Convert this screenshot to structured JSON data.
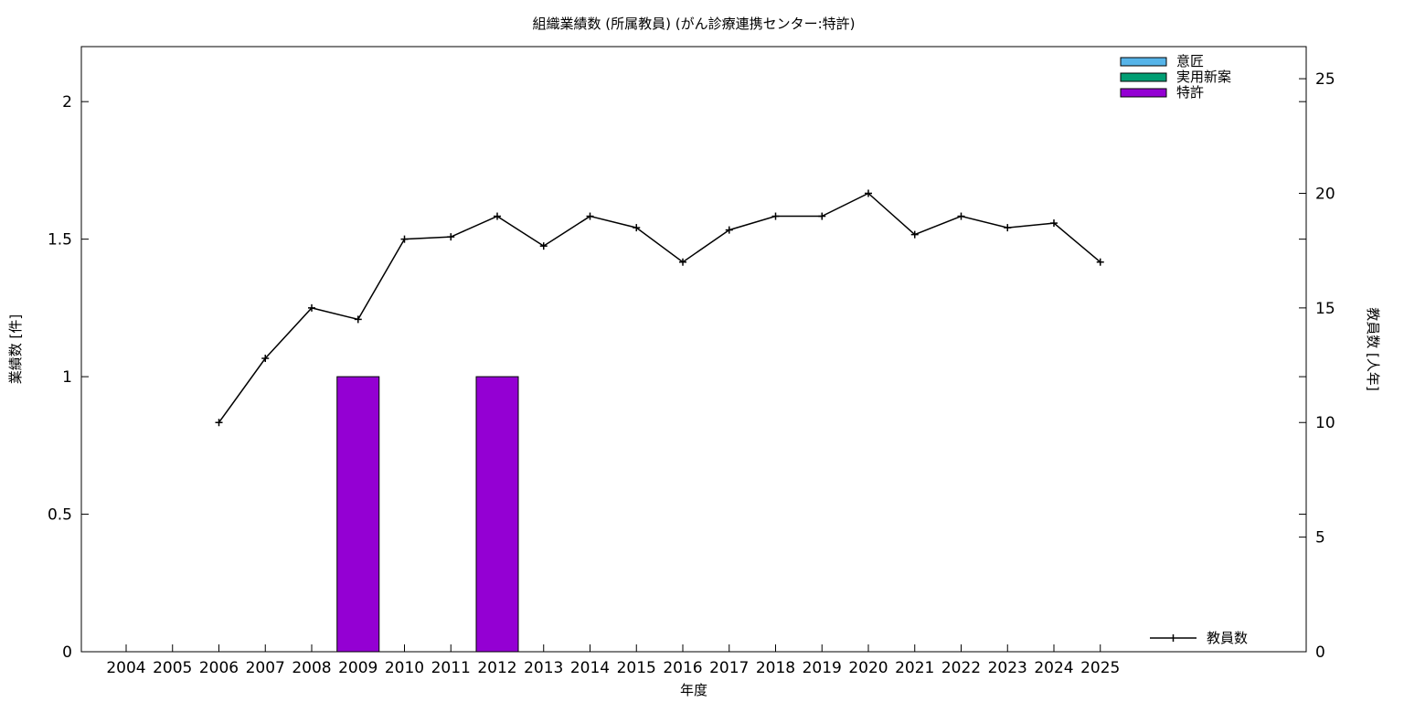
{
  "chart_data": {
    "type": "bar",
    "title": "組織業績数 (所属教員) (がん診療連携センター:特許)",
    "xlabel": "年度",
    "ylabel": "業績数 [件]",
    "y2label": "教員数 [人年]",
    "ylim": [
      0,
      2.2
    ],
    "y2lim": [
      0,
      26.4
    ],
    "yticks": [
      "0",
      "0.5",
      "1",
      "1.5",
      "2"
    ],
    "y2ticks": [
      "0",
      "5",
      "10",
      "15",
      "20",
      "25"
    ],
    "categories": [
      "2004",
      "2005",
      "2006",
      "2007",
      "2008",
      "2009",
      "2010",
      "2011",
      "2012",
      "2013",
      "2014",
      "2015",
      "2016",
      "2017",
      "2018",
      "2019",
      "2020",
      "2021",
      "2022",
      "2023",
      "2024",
      "2025"
    ],
    "bar_series": [
      {
        "name": "意匠",
        "color": "#56b4e9",
        "values": [
          0,
          0,
          0,
          0,
          0,
          0,
          0,
          0,
          0,
          0,
          0,
          0,
          0,
          0,
          0,
          0,
          0,
          0,
          0,
          0,
          0,
          0
        ]
      },
      {
        "name": "実用新案",
        "color": "#009e73",
        "values": [
          0,
          0,
          0,
          0,
          0,
          0,
          0,
          0,
          0,
          0,
          0,
          0,
          0,
          0,
          0,
          0,
          0,
          0,
          0,
          0,
          0,
          0
        ]
      },
      {
        "name": "特許",
        "color": "#9400d3",
        "values": [
          0,
          0,
          0,
          0,
          0,
          1,
          0,
          0,
          1,
          0,
          0,
          0,
          0,
          0,
          0,
          0,
          0,
          0,
          0,
          0,
          0,
          0
        ]
      }
    ],
    "line_series": {
      "name": "教員数",
      "color": "#000000",
      "axis": "y2",
      "values": [
        null,
        null,
        10,
        12.8,
        15,
        14.5,
        18,
        18.1,
        19,
        17.7,
        19,
        18.5,
        17,
        18.4,
        19,
        19,
        20,
        18.2,
        19,
        18.5,
        18.7,
        17
      ]
    },
    "legend": {
      "bars": "top-right",
      "line": "bottom-right"
    },
    "grid": false
  }
}
